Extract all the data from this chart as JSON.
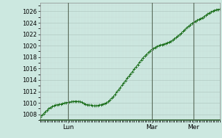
{
  "background_color": "#cce8e0",
  "plot_bg_color": "#cce8e0",
  "grid_major_color": "#b0c8c0",
  "grid_minor_color": "#c8ddd8",
  "line_color": "#1a6e1a",
  "marker_color": "#1a6e1a",
  "vline_color": "#556655",
  "ylim": [
    1007,
    1027.5
  ],
  "yticks": [
    1008,
    1010,
    1012,
    1014,
    1016,
    1018,
    1020,
    1022,
    1024,
    1026
  ],
  "xtick_labels": [
    "Lun",
    "Mar",
    "Mer"
  ],
  "ylabel_fontsize": 6,
  "xlabel_fontsize": 6.5,
  "y_values": [
    1007.5,
    1007.8,
    1008.1,
    1008.4,
    1008.7,
    1009.0,
    1009.2,
    1009.4,
    1009.5,
    1009.6,
    1009.7,
    1009.75,
    1009.8,
    1009.9,
    1010.0,
    1010.05,
    1010.1,
    1010.15,
    1010.2,
    1010.25,
    1010.3,
    1010.3,
    1010.25,
    1010.2,
    1010.1,
    1009.9,
    1009.8,
    1009.7,
    1009.65,
    1009.6,
    1009.55,
    1009.5,
    1009.5,
    1009.55,
    1009.6,
    1009.7,
    1009.8,
    1009.9,
    1010.0,
    1010.2,
    1010.5,
    1010.8,
    1011.1,
    1011.5,
    1011.9,
    1012.3,
    1012.7,
    1013.1,
    1013.5,
    1013.9,
    1014.3,
    1014.7,
    1015.1,
    1015.5,
    1015.9,
    1016.3,
    1016.7,
    1017.1,
    1017.5,
    1017.9,
    1018.2,
    1018.5,
    1018.8,
    1019.1,
    1019.35,
    1019.55,
    1019.7,
    1019.85,
    1020.0,
    1020.1,
    1020.2,
    1020.3,
    1020.4,
    1020.5,
    1020.65,
    1020.8,
    1021.0,
    1021.2,
    1021.45,
    1021.7,
    1021.95,
    1022.2,
    1022.5,
    1022.8,
    1023.1,
    1023.4,
    1023.65,
    1023.9,
    1024.1,
    1024.3,
    1024.45,
    1024.6,
    1024.75,
    1024.9,
    1025.1,
    1025.35,
    1025.55,
    1025.75,
    1025.9,
    1026.05,
    1026.2,
    1026.3,
    1026.35,
    1026.4
  ],
  "n_points": 104,
  "lun_idx": 16,
  "mar_idx": 64,
  "mer_idx": 88
}
